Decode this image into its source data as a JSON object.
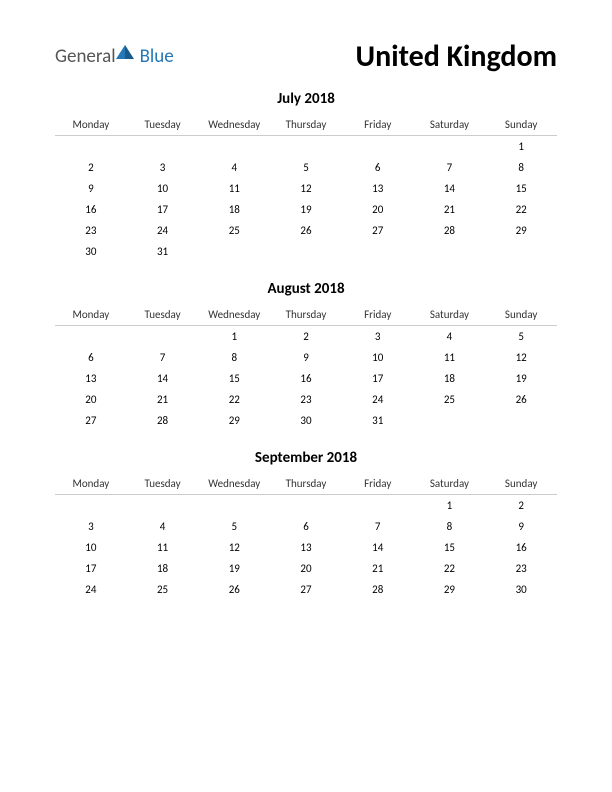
{
  "logo": {
    "text_general": "General",
    "text_blue": "Blue",
    "icon_color": "#2578b8"
  },
  "title": "United Kingdom",
  "colors": {
    "background": "#ffffff",
    "text": "#000000",
    "header_border": "#cccccc",
    "logo_gray": "#555555",
    "logo_blue": "#2578b8"
  },
  "day_headers": [
    "Monday",
    "Tuesday",
    "Wednesday",
    "Thursday",
    "Friday",
    "Saturday",
    "Sunday"
  ],
  "months": [
    {
      "title": "July 2018",
      "weeks": [
        [
          "",
          "",
          "",
          "",
          "",
          "",
          "1"
        ],
        [
          "2",
          "3",
          "4",
          "5",
          "6",
          "7",
          "8"
        ],
        [
          "9",
          "10",
          "11",
          "12",
          "13",
          "14",
          "15"
        ],
        [
          "16",
          "17",
          "18",
          "19",
          "20",
          "21",
          "22"
        ],
        [
          "23",
          "24",
          "25",
          "26",
          "27",
          "28",
          "29"
        ],
        [
          "30",
          "31",
          "",
          "",
          "",
          "",
          ""
        ]
      ]
    },
    {
      "title": "August 2018",
      "weeks": [
        [
          "",
          "",
          "1",
          "2",
          "3",
          "4",
          "5"
        ],
        [
          "6",
          "7",
          "8",
          "9",
          "10",
          "11",
          "12"
        ],
        [
          "13",
          "14",
          "15",
          "16",
          "17",
          "18",
          "19"
        ],
        [
          "20",
          "21",
          "22",
          "23",
          "24",
          "25",
          "26"
        ],
        [
          "27",
          "28",
          "29",
          "30",
          "31",
          "",
          ""
        ]
      ]
    },
    {
      "title": "September 2018",
      "weeks": [
        [
          "",
          "",
          "",
          "",
          "",
          "1",
          "2"
        ],
        [
          "3",
          "4",
          "5",
          "6",
          "7",
          "8",
          "9"
        ],
        [
          "10",
          "11",
          "12",
          "13",
          "14",
          "15",
          "16"
        ],
        [
          "17",
          "18",
          "19",
          "20",
          "21",
          "22",
          "23"
        ],
        [
          "24",
          "25",
          "26",
          "27",
          "28",
          "29",
          "30"
        ]
      ]
    }
  ]
}
